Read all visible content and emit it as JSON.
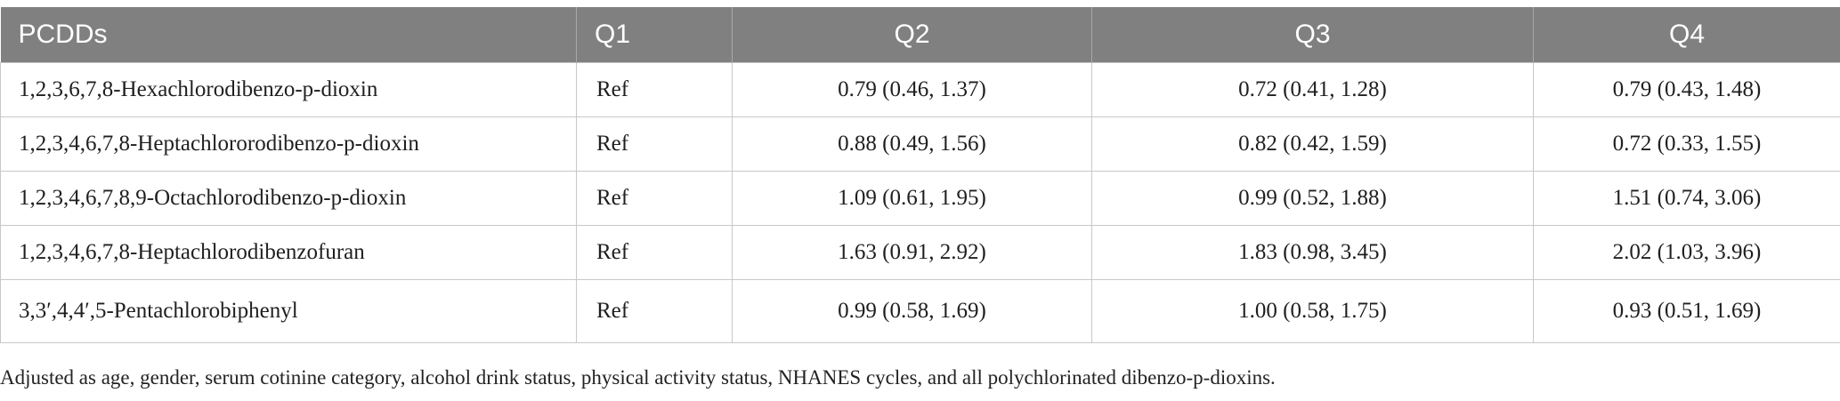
{
  "table": {
    "headers": [
      "PCDDs",
      "Q1",
      "Q2",
      "Q3",
      "Q4"
    ],
    "rows": [
      {
        "name": "1,2,3,6,7,8-Hexachlorodibenzo-p-dioxin",
        "q1": "Ref",
        "q2": "0.79 (0.46, 1.37)",
        "q3": "0.72 (0.41, 1.28)",
        "q4": "0.79 (0.43, 1.48)"
      },
      {
        "name": "1,2,3,4,6,7,8-Heptachlororodibenzo-p-dioxin",
        "q1": "Ref",
        "q2": "0.88 (0.49, 1.56)",
        "q3": "0.82 (0.42, 1.59)",
        "q4": "0.72 (0.33, 1.55)"
      },
      {
        "name": "1,2,3,4,6,7,8,9-Octachlorodibenzo-p-dioxin",
        "q1": "Ref",
        "q2": "1.09 (0.61, 1.95)",
        "q3": "0.99 (0.52, 1.88)",
        "q4": "1.51 (0.74, 3.06)"
      },
      {
        "name": "1,2,3,4,6,7,8-Heptachlorodibenzofuran",
        "q1": "Ref",
        "q2": "1.63 (0.91, 2.92)",
        "q3": "1.83 (0.98, 3.45)",
        "q4": "2.02 (1.03, 3.96)"
      },
      {
        "name": "3,3′,4,4′,5-Pentachlorobiphenyl",
        "q1": "Ref",
        "q2": "0.99 (0.58, 1.69)",
        "q3": "1.00 (0.58, 1.75)",
        "q4": "0.93 (0.51, 1.69)"
      }
    ]
  },
  "footnote": "Adjusted as age, gender, serum cotinine category, alcohol drink status, physical activity status, NHANES cycles, and all polychlorinated dibenzo-p-dioxins."
}
